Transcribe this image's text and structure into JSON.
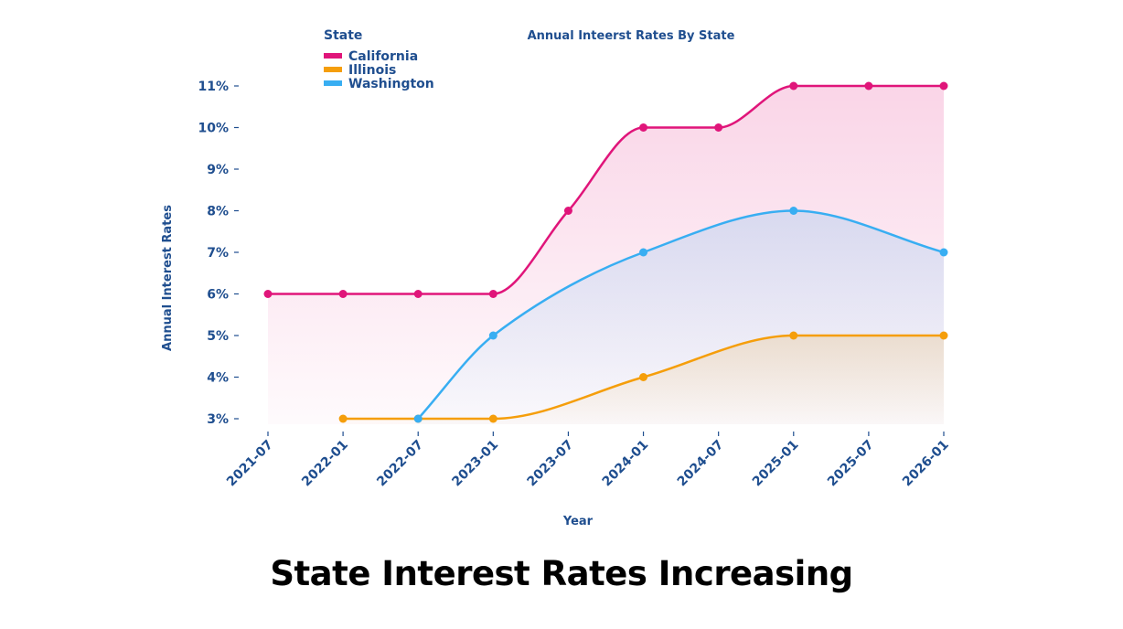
{
  "chart_data": {
    "type": "area",
    "title": "Annual Inteerst Rates By State",
    "xlabel": "Year",
    "ylabel": "Annual Interest Rates",
    "x": [
      "2021-07",
      "2022-01",
      "2022-07",
      "2023-01",
      "2023-07",
      "2024-01",
      "2024-07",
      "2025-01",
      "2025-07",
      "2026-01"
    ],
    "yticks": [
      "3%",
      "4%",
      "5%",
      "6%",
      "7%",
      "8%",
      "9%",
      "10%",
      "11%"
    ],
    "ylim": [
      3,
      11
    ],
    "grid": false,
    "legend": {
      "title": "State",
      "placement": "top-left"
    },
    "series": [
      {
        "name": "California",
        "color": "#e0157a",
        "points": [
          [
            "2021-07",
            6
          ],
          [
            "2022-01",
            6
          ],
          [
            "2022-07",
            6
          ],
          [
            "2023-01",
            6
          ],
          [
            "2023-07",
            8
          ],
          [
            "2024-01",
            10
          ],
          [
            "2024-07",
            10
          ],
          [
            "2025-01",
            11
          ],
          [
            "2025-07",
            11
          ],
          [
            "2026-01",
            11
          ]
        ]
      },
      {
        "name": "Illinois",
        "color": "#f59e0b",
        "points": [
          [
            "2022-01",
            3
          ],
          [
            "2022-07",
            3
          ],
          [
            "2023-01",
            3
          ],
          [
            "2024-01",
            4
          ],
          [
            "2025-01",
            5
          ],
          [
            "2026-01",
            5
          ]
        ]
      },
      {
        "name": "Washington",
        "color": "#38aef2",
        "points": [
          [
            "2022-07",
            3
          ],
          [
            "2023-01",
            5
          ],
          [
            "2024-01",
            7
          ],
          [
            "2025-01",
            8
          ],
          [
            "2026-01",
            7
          ]
        ]
      }
    ]
  },
  "caption": "State Interest Rates Increasing"
}
